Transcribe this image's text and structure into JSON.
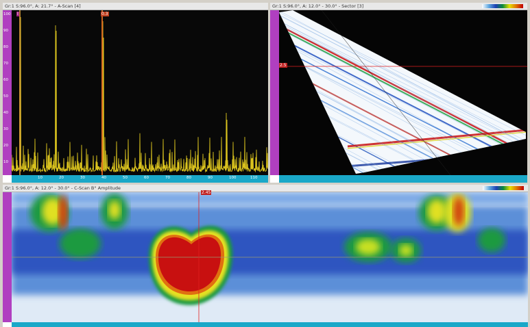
{
  "ascan": {
    "title": "Gr:1 S:96.0°, A: 21.7° - A-Scan [4]",
    "gate_a": "I",
    "gate_b": "0.3"
  },
  "sector": {
    "title": "Gr:1 S:96.0°, A: 12.0° - 30.0° - Sector [3]",
    "cursor_label": "2.5"
  },
  "cscan": {
    "title": "Gr:1 S:96.0°, A: 12.0° - 30.0° - C-Scan B° Amplitude",
    "cursor_label": "2.45"
  },
  "colors": {
    "ascan_trace": "#d9c21e",
    "ascan_bg": "#080808",
    "ruler_purple": "#b03fc0",
    "ruler_cyan": "#1aa8c8",
    "cursor_red": "#e02020",
    "flaw_red": "#c81010"
  }
}
